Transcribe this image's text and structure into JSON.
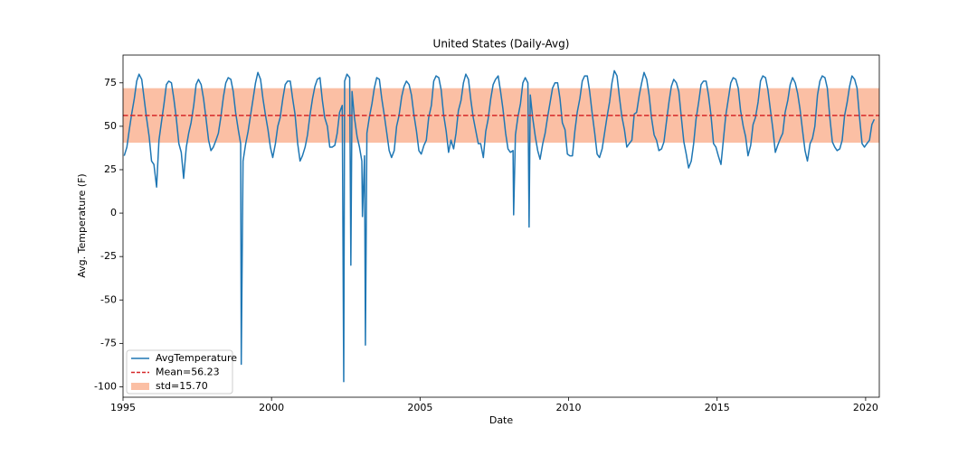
{
  "chart_data": {
    "type": "line",
    "title": "United States (Daily-Avg)",
    "xlabel": "Date",
    "ylabel": "Avg. Temperature (F)",
    "xlim": [
      1995,
      2020.46
    ],
    "xticks": [
      1995,
      2000,
      2005,
      2010,
      2015,
      2020
    ],
    "ylim": [
      -106,
      91
    ],
    "yticks": [
      -100,
      -75,
      -50,
      -25,
      0,
      25,
      50,
      75
    ],
    "legend": "lower left",
    "x": [
      1995.04,
      1995.13,
      1995.21,
      1995.29,
      1995.38,
      1995.46,
      1995.54,
      1995.63,
      1995.71,
      1995.79,
      1995.88,
      1995.96,
      1996.04,
      1996.13,
      1996.21,
      1996.29,
      1996.38,
      1996.46,
      1996.54,
      1996.63,
      1996.71,
      1996.79,
      1996.88,
      1996.96,
      1997.04,
      1997.13,
      1997.21,
      1997.29,
      1997.38,
      1997.46,
      1997.54,
      1997.63,
      1997.71,
      1997.79,
      1997.88,
      1997.96,
      1998.04,
      1998.13,
      1998.21,
      1998.29,
      1998.38,
      1998.46,
      1998.54,
      1998.63,
      1998.71,
      1998.79,
      1998.88,
      1998.96,
      1998.98,
      1999.04,
      1999.13,
      1999.21,
      1999.29,
      1999.38,
      1999.46,
      1999.54,
      1999.63,
      1999.71,
      1999.79,
      1999.88,
      1999.96,
      2000.04,
      2000.13,
      2000.21,
      2000.29,
      2000.38,
      2000.46,
      2000.54,
      2000.63,
      2000.71,
      2000.79,
      2000.88,
      2000.96,
      2001.04,
      2001.13,
      2001.21,
      2001.29,
      2001.38,
      2001.46,
      2001.54,
      2001.63,
      2001.71,
      2001.79,
      2001.88,
      2001.96,
      2002.04,
      2002.13,
      2002.21,
      2002.29,
      2002.38,
      2002.43,
      2002.46,
      2002.54,
      2002.63,
      2002.67,
      2002.71,
      2002.79,
      2002.88,
      2002.96,
      2003.04,
      2003.06,
      2003.13,
      2003.16,
      2003.21,
      2003.29,
      2003.38,
      2003.46,
      2003.54,
      2003.63,
      2003.71,
      2003.79,
      2003.88,
      2003.96,
      2004.04,
      2004.13,
      2004.21,
      2004.29,
      2004.38,
      2004.46,
      2004.54,
      2004.63,
      2004.71,
      2004.79,
      2004.88,
      2004.96,
      2005.04,
      2005.13,
      2005.21,
      2005.29,
      2005.38,
      2005.46,
      2005.54,
      2005.63,
      2005.71,
      2005.79,
      2005.88,
      2005.96,
      2006.04,
      2006.13,
      2006.21,
      2006.29,
      2006.38,
      2006.46,
      2006.54,
      2006.63,
      2006.71,
      2006.79,
      2006.88,
      2006.96,
      2007.04,
      2007.13,
      2007.21,
      2007.29,
      2007.38,
      2007.46,
      2007.54,
      2007.63,
      2007.71,
      2007.79,
      2007.88,
      2007.96,
      2008.04,
      2008.13,
      2008.15,
      2008.21,
      2008.29,
      2008.38,
      2008.46,
      2008.54,
      2008.63,
      2008.67,
      2008.71,
      2008.79,
      2008.88,
      2008.96,
      2009.04,
      2009.13,
      2009.21,
      2009.29,
      2009.38,
      2009.46,
      2009.54,
      2009.63,
      2009.71,
      2009.79,
      2009.88,
      2009.96,
      2010.04,
      2010.13,
      2010.21,
      2010.29,
      2010.38,
      2010.46,
      2010.54,
      2010.63,
      2010.71,
      2010.79,
      2010.88,
      2010.96,
      2011.04,
      2011.13,
      2011.21,
      2011.29,
      2011.38,
      2011.46,
      2011.54,
      2011.63,
      2011.71,
      2011.79,
      2011.88,
      2011.96,
      2012.04,
      2012.13,
      2012.21,
      2012.29,
      2012.38,
      2012.46,
      2012.54,
      2012.63,
      2012.71,
      2012.79,
      2012.88,
      2012.96,
      2013.04,
      2013.13,
      2013.21,
      2013.29,
      2013.38,
      2013.46,
      2013.54,
      2013.63,
      2013.71,
      2013.79,
      2013.88,
      2013.96,
      2014.04,
      2014.13,
      2014.21,
      2014.29,
      2014.38,
      2014.46,
      2014.54,
      2014.63,
      2014.71,
      2014.79,
      2014.88,
      2014.96,
      2015.04,
      2015.13,
      2015.21,
      2015.29,
      2015.38,
      2015.46,
      2015.54,
      2015.63,
      2015.71,
      2015.79,
      2015.88,
      2015.96,
      2016.04,
      2016.13,
      2016.21,
      2016.29,
      2016.38,
      2016.46,
      2016.54,
      2016.63,
      2016.71,
      2016.79,
      2016.88,
      2016.96,
      2017.04,
      2017.13,
      2017.21,
      2017.29,
      2017.38,
      2017.46,
      2017.54,
      2017.63,
      2017.71,
      2017.79,
      2017.88,
      2017.96,
      2018.04,
      2018.13,
      2018.21,
      2018.29,
      2018.38,
      2018.46,
      2018.54,
      2018.63,
      2018.71,
      2018.79,
      2018.88,
      2018.96,
      2019.04,
      2019.13,
      2019.21,
      2019.29,
      2019.38,
      2019.46,
      2019.54,
      2019.63,
      2019.71,
      2019.79,
      2019.88,
      2019.96,
      2020.04,
      2020.13,
      2020.21,
      2020.29
    ],
    "series": [
      {
        "name": "AvgTemperature",
        "color": "#1f77b4",
        "values": [
          33,
          38,
          48,
          57,
          66,
          76,
          80,
          77,
          66,
          55,
          44,
          30,
          28,
          15,
          42,
          52,
          63,
          74,
          76,
          75,
          66,
          55,
          40,
          35,
          20,
          38,
          46,
          52,
          62,
          74,
          77,
          74,
          66,
          55,
          42,
          36,
          38,
          42,
          46,
          55,
          67,
          75,
          78,
          77,
          70,
          58,
          48,
          40,
          -87,
          30,
          40,
          47,
          56,
          66,
          75,
          81,
          77,
          66,
          57,
          48,
          38,
          32,
          40,
          50,
          55,
          66,
          74,
          76,
          76,
          66,
          57,
          40,
          30,
          33,
          38,
          45,
          56,
          66,
          73,
          77,
          78,
          65,
          55,
          50,
          38,
          38,
          39,
          46,
          58,
          62,
          -97,
          76,
          80,
          78,
          -30,
          70,
          55,
          44,
          38,
          30,
          -2,
          33,
          -76,
          46,
          55,
          63,
          72,
          78,
          77,
          66,
          57,
          46,
          36,
          32,
          36,
          50,
          56,
          67,
          73,
          76,
          74,
          68,
          57,
          47,
          36,
          34,
          39,
          42,
          55,
          62,
          76,
          79,
          78,
          71,
          57,
          47,
          35,
          42,
          37,
          46,
          59,
          65,
          75,
          80,
          77,
          65,
          55,
          47,
          40,
          40,
          32,
          47,
          54,
          66,
          74,
          77,
          79,
          70,
          60,
          46,
          37,
          35,
          36,
          -1,
          45,
          55,
          63,
          75,
          78,
          75,
          -8,
          68,
          55,
          44,
          36,
          31,
          40,
          46,
          55,
          64,
          72,
          75,
          75,
          66,
          52,
          48,
          34,
          33,
          33,
          47,
          58,
          66,
          76,
          79,
          79,
          70,
          58,
          46,
          34,
          32,
          37,
          46,
          55,
          64,
          75,
          82,
          79,
          67,
          56,
          48,
          38,
          40,
          42,
          57,
          58,
          68,
          75,
          81,
          77,
          68,
          55,
          45,
          42,
          36,
          37,
          41,
          52,
          64,
          73,
          77,
          75,
          70,
          56,
          41,
          34,
          26,
          30,
          40,
          54,
          64,
          74,
          76,
          76,
          68,
          57,
          40,
          38,
          33,
          28,
          42,
          56,
          66,
          75,
          78,
          77,
          72,
          59,
          50,
          44,
          33,
          39,
          51,
          55,
          64,
          76,
          79,
          78,
          71,
          60,
          48,
          35,
          39,
          43,
          46,
          58,
          65,
          74,
          78,
          75,
          69,
          60,
          47,
          36,
          30,
          40,
          43,
          50,
          68,
          76,
          79,
          78,
          72,
          56,
          41,
          38,
          36,
          37,
          42,
          56,
          64,
          73,
          79,
          77,
          72,
          56,
          40,
          38,
          40,
          42,
          51,
          54
        ]
      }
    ],
    "mean": {
      "name": "Mean=56.23",
      "color": "#d62728",
      "value": 56.23
    },
    "std_band": {
      "name": "std=15.70",
      "color": "#f9a985",
      "value": 15.7
    }
  }
}
